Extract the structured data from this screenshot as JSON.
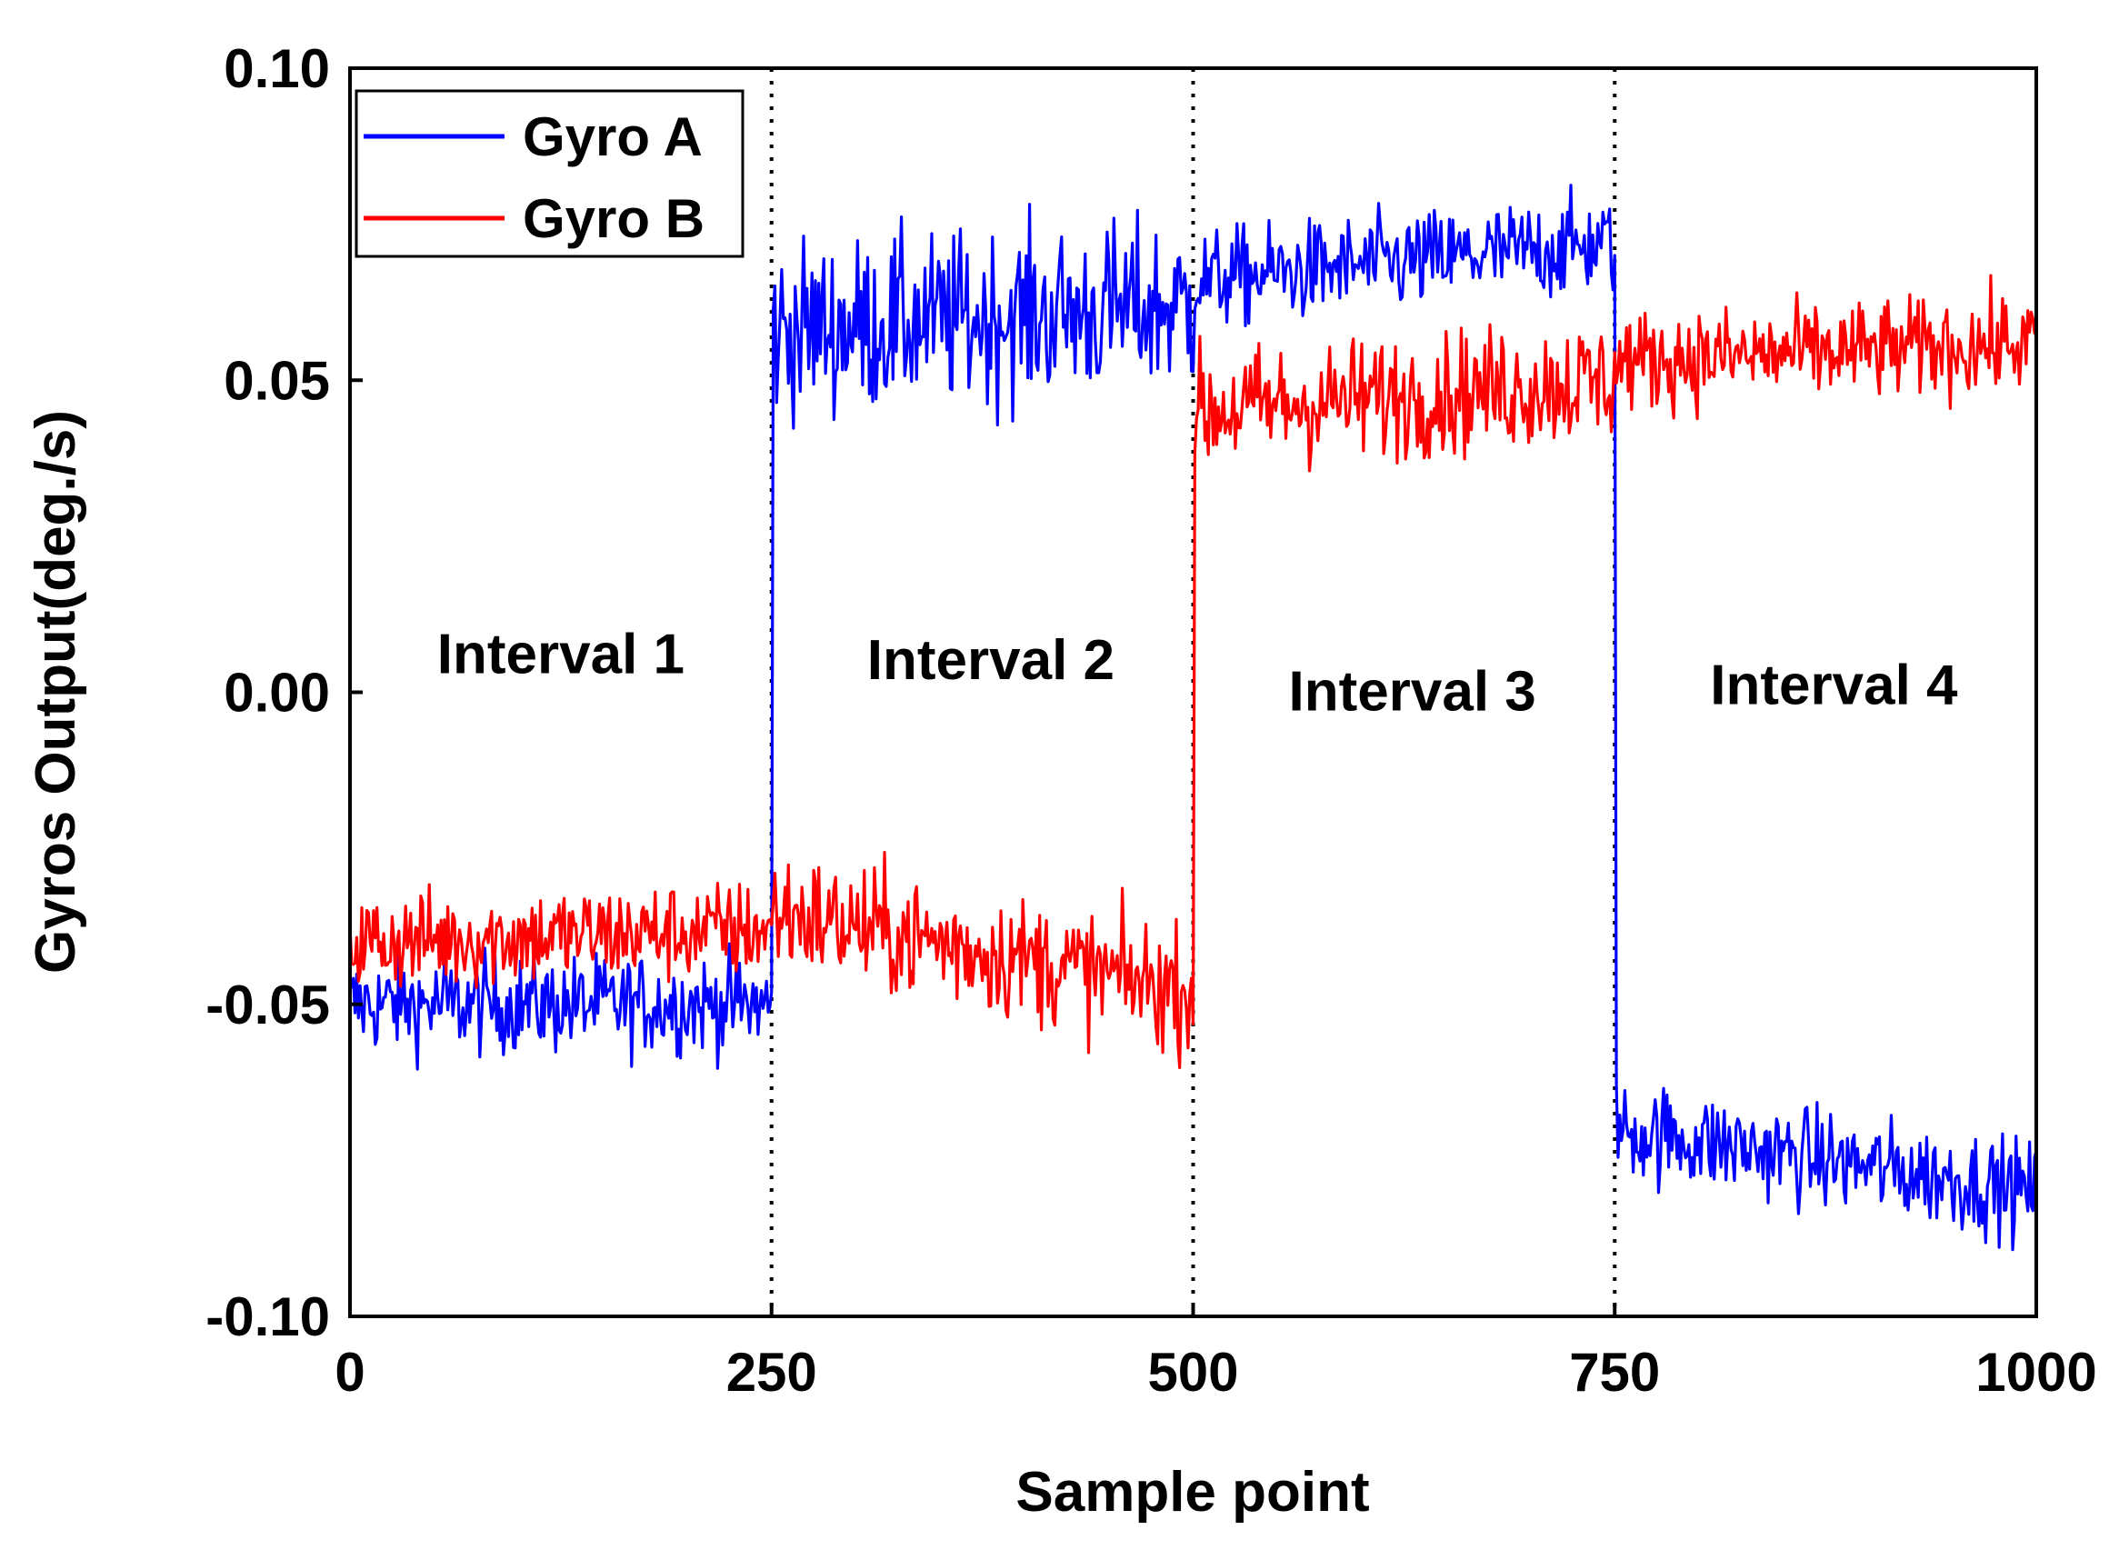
{
  "chart_data": {
    "type": "line",
    "xlabel": "Sample point",
    "ylabel": "Gyros Output(deg./s)",
    "xlim": [
      0,
      1000
    ],
    "ylim": [
      -0.1,
      0.1
    ],
    "xticks": [
      0,
      250,
      500,
      750,
      1000
    ],
    "xtick_labels": [
      "0",
      "250",
      "500",
      "750",
      "1000"
    ],
    "yticks": [
      -0.1,
      -0.05,
      0.0,
      0.05,
      0.1
    ],
    "ytick_labels": [
      "-0.10",
      "-0.05",
      "0.00",
      "0.05",
      "0.10"
    ],
    "grid": false,
    "legend_position": "top-left",
    "vlines": [
      250,
      500,
      750
    ],
    "annotations": [
      {
        "text": "Interval 1",
        "x": 125,
        "y": 0.006
      },
      {
        "text": "Interval 2",
        "x": 380,
        "y": 0.005
      },
      {
        "text": "Interval 3",
        "x": 630,
        "y": 0.0
      },
      {
        "text": "Interval 4",
        "x": 880,
        "y": 0.001
      }
    ],
    "series": [
      {
        "name": "Gyro A",
        "color": "#0000ff",
        "segments": [
          {
            "x_start": 0,
            "x_end": 250,
            "mean_start": -0.05,
            "mean_end": -0.05,
            "noise": 0.004
          },
          {
            "x_start": 251,
            "x_end": 500,
            "mean_start": 0.058,
            "mean_end": 0.062,
            "noise": 0.007
          },
          {
            "x_start": 501,
            "x_end": 750,
            "mean_start": 0.066,
            "mean_end": 0.072,
            "noise": 0.004
          },
          {
            "x_start": 751,
            "x_end": 1000,
            "mean_start": -0.07,
            "mean_end": -0.08,
            "noise": 0.004
          }
        ]
      },
      {
        "name": "Gyro B",
        "color": "#ff0000",
        "segments": [
          {
            "x_start": 0,
            "x_end": 250,
            "mean_start": -0.04,
            "mean_end": -0.038,
            "noise": 0.004
          },
          {
            "x_start": 251,
            "x_end": 500,
            "mean_start": -0.035,
            "mean_end": -0.048,
            "noise": 0.005
          },
          {
            "x_start": 501,
            "x_end": 750,
            "mean_start": 0.045,
            "mean_end": 0.05,
            "noise": 0.005
          },
          {
            "x_start": 751,
            "x_end": 1000,
            "mean_start": 0.053,
            "mean_end": 0.056,
            "noise": 0.004
          }
        ]
      }
    ]
  }
}
